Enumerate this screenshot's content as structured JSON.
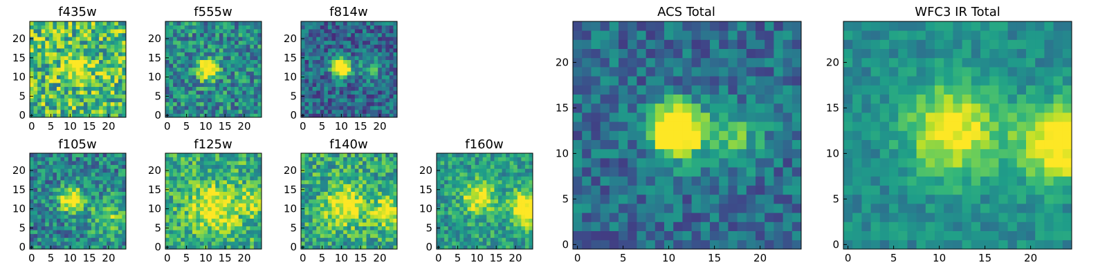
{
  "figure": {
    "type": "image-grid"
  },
  "colormap": {
    "name": "viridis",
    "stops": [
      "#440154",
      "#482878",
      "#3e4989",
      "#31688e",
      "#26828e",
      "#1f9e89",
      "#35b779",
      "#6ece58",
      "#b5de2b",
      "#fde725"
    ]
  },
  "chart_data": [
    {
      "type": "heatmap",
      "title": "f435w",
      "grid_size": 25,
      "xlim": [
        0,
        24
      ],
      "ylim": [
        0,
        24
      ],
      "xticks": [
        0,
        5,
        10,
        15,
        20
      ],
      "yticks": [
        0,
        5,
        10,
        15,
        20
      ],
      "field_level": 0.68,
      "noise": 0.32,
      "sources": [
        [
          12,
          12.5,
          2.5,
          0.25
        ]
      ],
      "seed": 11
    },
    {
      "type": "heatmap",
      "title": "f555w",
      "grid_size": 25,
      "xlim": [
        0,
        24
      ],
      "ylim": [
        0,
        24
      ],
      "xticks": [
        0,
        5,
        10,
        15,
        20
      ],
      "yticks": [
        0,
        5,
        10,
        15,
        20
      ],
      "field_level": 0.48,
      "noise": 0.26,
      "sources": [
        [
          10.5,
          12,
          1.8,
          0.55
        ]
      ],
      "seed": 23
    },
    {
      "type": "heatmap",
      "title": "f814w",
      "grid_size": 25,
      "xlim": [
        0,
        24
      ],
      "ylim": [
        0,
        24
      ],
      "xticks": [
        0,
        5,
        10,
        15,
        20
      ],
      "yticks": [
        0,
        5,
        10,
        15,
        20
      ],
      "field_level": 0.34,
      "noise": 0.22,
      "sources": [
        [
          10,
          12.5,
          1.6,
          0.7
        ],
        [
          17.5,
          12,
          2.0,
          0.18
        ]
      ],
      "seed": 37
    },
    {
      "type": "heatmap",
      "title": "f105w",
      "grid_size": 25,
      "xlim": [
        0,
        24
      ],
      "ylim": [
        0,
        24
      ],
      "xticks": [
        0,
        5,
        10,
        15,
        20
      ],
      "yticks": [
        0,
        5,
        10,
        15,
        20
      ],
      "field_level": 0.45,
      "noise": 0.24,
      "sources": [
        [
          10.5,
          12.5,
          2.2,
          0.45
        ],
        [
          20,
          8,
          3.5,
          0.2
        ]
      ],
      "seed": 41
    },
    {
      "type": "heatmap",
      "title": "f125w",
      "grid_size": 25,
      "xlim": [
        0,
        24
      ],
      "ylim": [
        0,
        24
      ],
      "xticks": [
        0,
        5,
        10,
        15,
        20
      ],
      "yticks": [
        0,
        5,
        10,
        15,
        20
      ],
      "field_level": 0.62,
      "noise": 0.24,
      "sources": [
        [
          12,
          10,
          4.0,
          0.28
        ],
        [
          22,
          12,
          2.5,
          0.22
        ]
      ],
      "seed": 53
    },
    {
      "type": "heatmap",
      "title": "f140w",
      "grid_size": 25,
      "xlim": [
        0,
        24
      ],
      "ylim": [
        0,
        24
      ],
      "xticks": [
        0,
        5,
        10,
        15,
        20
      ],
      "yticks": [
        0,
        5,
        10,
        15,
        20
      ],
      "field_level": 0.6,
      "noise": 0.24,
      "sources": [
        [
          11,
          11,
          3.5,
          0.3
        ],
        [
          22,
          9,
          2.5,
          0.3
        ]
      ],
      "seed": 67
    },
    {
      "type": "heatmap",
      "title": "f160w",
      "grid_size": 25,
      "xlim": [
        0,
        24
      ],
      "ylim": [
        0,
        24
      ],
      "xticks": [
        0,
        5,
        10,
        15,
        20
      ],
      "yticks": [
        0,
        5,
        10,
        15,
        20
      ],
      "field_level": 0.55,
      "noise": 0.2,
      "sources": [
        [
          10.5,
          13,
          3.0,
          0.3
        ],
        [
          23,
          10,
          3.0,
          0.4
        ]
      ],
      "seed": 79
    },
    {
      "type": "heatmap",
      "title": "ACS Total",
      "grid_size": 25,
      "xlim": [
        0,
        24
      ],
      "ylim": [
        0,
        24
      ],
      "xticks": [
        0,
        5,
        10,
        15,
        20
      ],
      "yticks": [
        0,
        5,
        10,
        15,
        20
      ],
      "field_level": 0.36,
      "noise": 0.18,
      "sources": [
        [
          11,
          12.5,
          2.0,
          0.7
        ],
        [
          17.5,
          12,
          2.2,
          0.2
        ]
      ],
      "seed": 97
    },
    {
      "type": "heatmap",
      "title": "WFC3 IR Total",
      "grid_size": 25,
      "xlim": [
        0,
        24
      ],
      "ylim": [
        0,
        24
      ],
      "xticks": [
        0,
        5,
        10,
        15,
        20
      ],
      "yticks": [
        0,
        5,
        10,
        15,
        20
      ],
      "field_level": 0.48,
      "noise": 0.12,
      "sources": [
        [
          11.5,
          12.5,
          3.5,
          0.35
        ],
        [
          23,
          11,
          3.0,
          0.4
        ]
      ],
      "seed": 103
    }
  ]
}
